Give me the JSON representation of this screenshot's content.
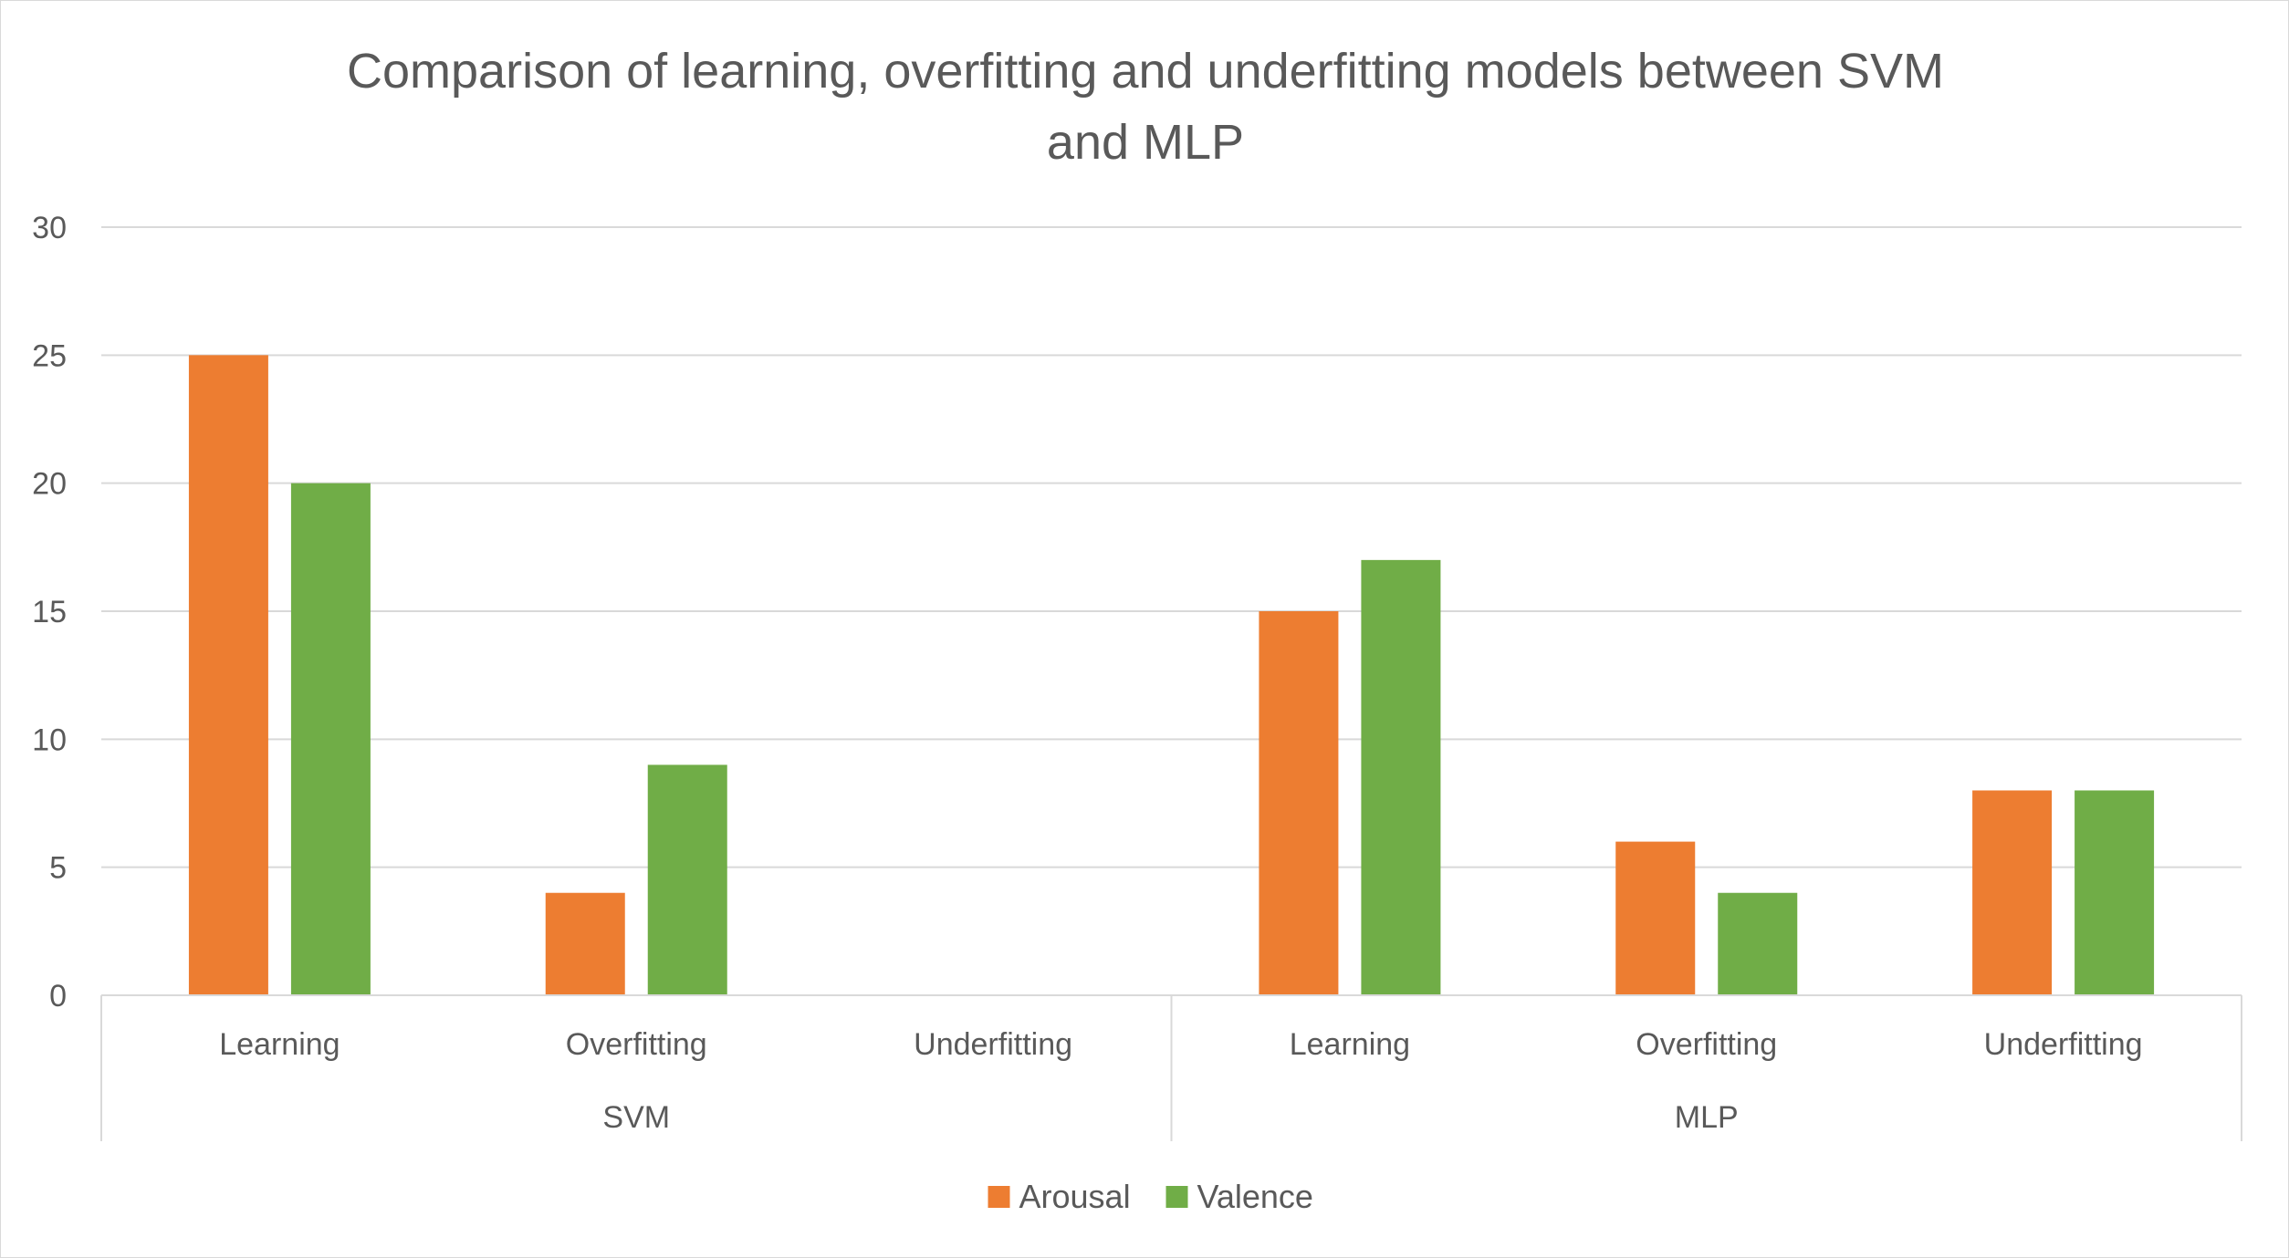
{
  "chart_data": {
    "type": "bar",
    "title_lines": [
      "Comparison of learning, overfitting and underfitting models between SVM",
      "and MLP"
    ],
    "title": "Comparison of learning, overfitting and underfitting models between SVM and MLP",
    "xlabel": "",
    "ylabel": "",
    "groups": [
      {
        "label": "SVM",
        "categories": [
          "Learning",
          "Overfitting",
          "Underfitting"
        ]
      },
      {
        "label": "MLP",
        "categories": [
          "Learning",
          "Overfitting",
          "Underfitting"
        ]
      }
    ],
    "categories": [
      "Learning",
      "Overfitting",
      "Underfitting",
      "Learning",
      "Overfitting",
      "Underfitting"
    ],
    "series": [
      {
        "name": "Arousal",
        "color": "#ED7D31",
        "values": [
          25,
          4,
          0,
          15,
          6,
          8
        ]
      },
      {
        "name": "Valence",
        "color": "#70AD47",
        "values": [
          20,
          9,
          0,
          17,
          4,
          8
        ]
      }
    ],
    "ylim": [
      0,
      30
    ],
    "yticks": [
      0,
      5,
      10,
      15,
      20,
      25,
      30
    ],
    "grid": true,
    "legend_position": "bottom"
  }
}
